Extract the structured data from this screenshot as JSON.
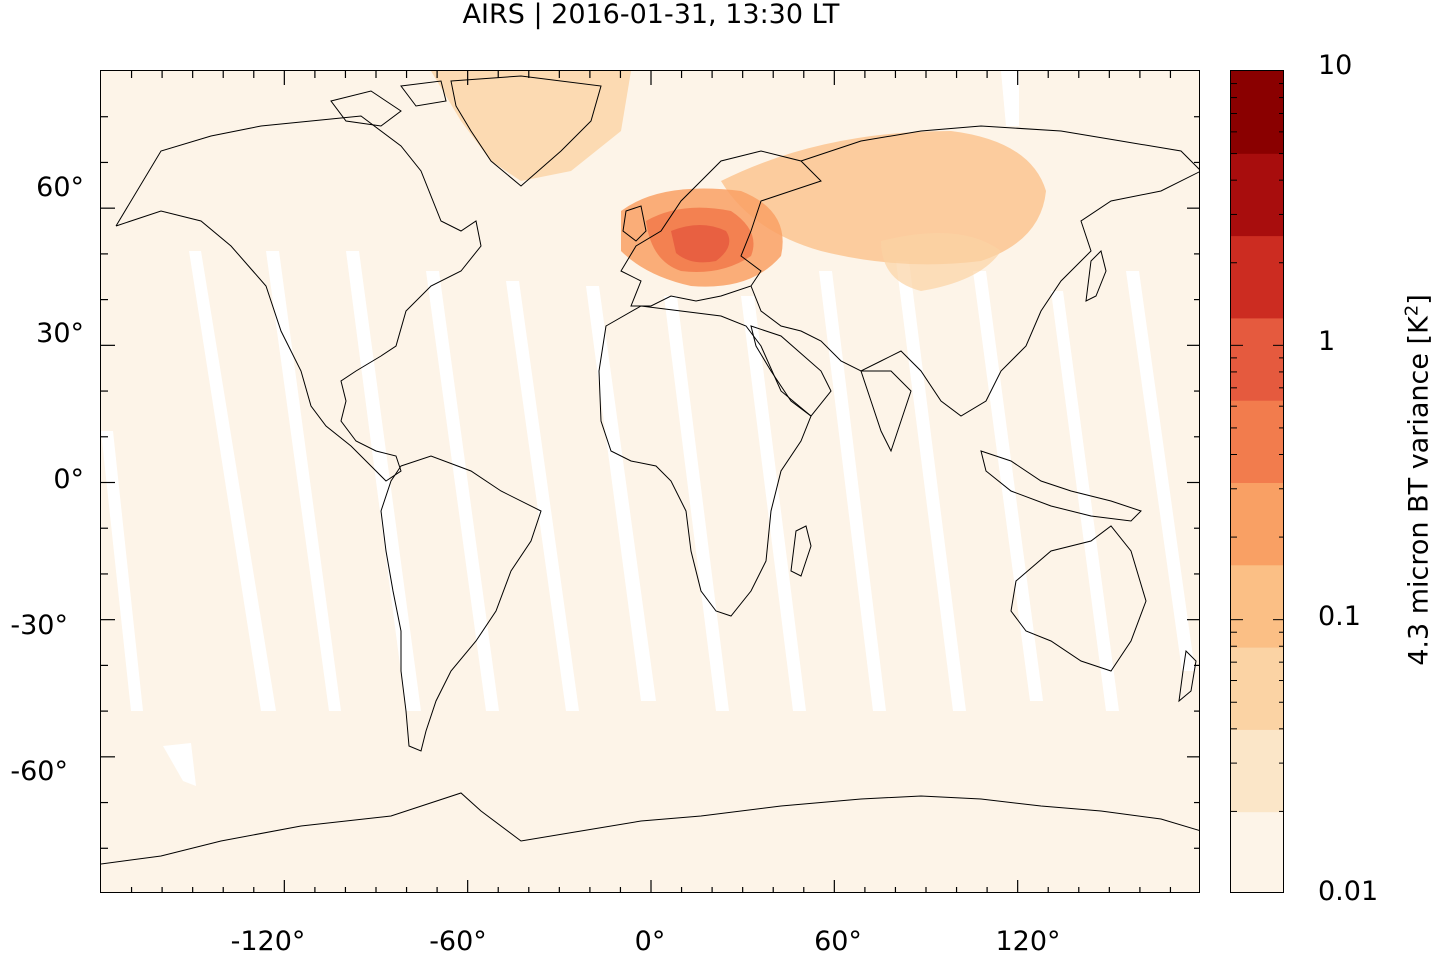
{
  "title": "AIRS | 2016-01-31, 13:30 LT",
  "map": {
    "projection": "equirectangular",
    "lon_range": [
      -180,
      180
    ],
    "lat_range": [
      -90,
      90
    ],
    "lat_ticks": [
      {
        "value": 60,
        "label": "60°"
      },
      {
        "value": 30,
        "label": "30°"
      },
      {
        "value": 0,
        "label": "0°"
      },
      {
        "value": -30,
        "label": "-30°"
      },
      {
        "value": -60,
        "label": "-60°"
      }
    ],
    "lon_ticks": [
      {
        "value": -120,
        "label": "-120°"
      },
      {
        "value": -60,
        "label": "-60°"
      },
      {
        "value": 0,
        "label": "0°"
      },
      {
        "value": 60,
        "label": "60°"
      },
      {
        "value": 120,
        "label": "120°"
      }
    ],
    "background_color": "#fdf4e8",
    "coastline_color": "#000000"
  },
  "colorbar": {
    "title_text": "4.3 micron BT variance [K",
    "title_sup": "2",
    "title_end": "]",
    "scale": "log",
    "range": [
      0.01,
      10
    ],
    "tick_labels": [
      {
        "value": 10,
        "label": "10"
      },
      {
        "value": 1,
        "label": "1"
      },
      {
        "value": 0.1,
        "label": "0.1"
      },
      {
        "value": 0.01,
        "label": "0.01"
      }
    ],
    "colors": [
      "#fdf4e8",
      "#fbe6c8",
      "#fbd3a4",
      "#fbbf85",
      "#f9a064",
      "#f27c4d",
      "#e55a3e",
      "#cc2c21",
      "#a80d0d",
      "#8a0000"
    ]
  }
}
